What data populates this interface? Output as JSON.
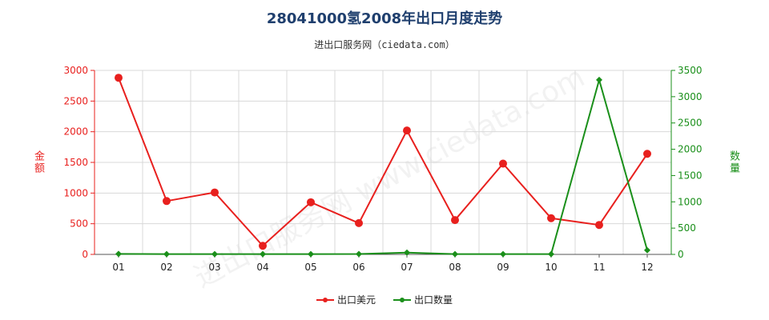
{
  "title": "28041000氢2008年出口月度走势",
  "subtitle": "进出口服务网（ciedata.com）",
  "watermark": "进出口服务网 www.ciedata.com",
  "colors": {
    "left_axis": "#e8201e",
    "right_axis": "#1a8f1a",
    "grid": "#d8d8d8",
    "title": "#1f3f6e"
  },
  "legend": {
    "export_value": "出口美元",
    "export_qty": "出口数量"
  },
  "chart_data": {
    "type": "line",
    "title": "28041000氢2008年出口月度走势",
    "categories": [
      "01",
      "02",
      "03",
      "04",
      "05",
      "06",
      "07",
      "08",
      "09",
      "10",
      "11",
      "12"
    ],
    "y_left": {
      "label": "金额",
      "ylim": [
        0,
        3000
      ],
      "ticks": [
        0,
        500,
        1000,
        1500,
        2000,
        2500,
        3000
      ]
    },
    "y_right": {
      "label": "数量",
      "ylim": [
        0,
        3500
      ],
      "ticks": [
        0,
        500,
        1000,
        1500,
        2000,
        2500,
        3000,
        3500
      ]
    },
    "grid": true,
    "legend_position": "bottom",
    "series": [
      {
        "name": "出口美元",
        "axis": "left",
        "color": "#e8201e",
        "values": [
          2880,
          870,
          1010,
          140,
          850,
          510,
          2020,
          560,
          1480,
          590,
          480,
          1640
        ]
      },
      {
        "name": "出口数量",
        "axis": "right",
        "color": "#1a8f1a",
        "values": [
          10,
          5,
          5,
          5,
          5,
          8,
          35,
          5,
          5,
          5,
          3320,
          80
        ]
      }
    ]
  }
}
